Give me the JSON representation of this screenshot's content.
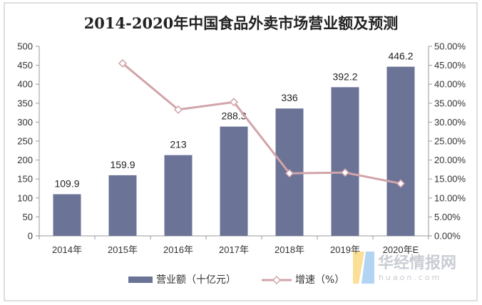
{
  "chart_data": {
    "type": "bar",
    "title": "2014-2020年中国食品外卖市场营业额及预测",
    "categories": [
      "2014年",
      "2015年",
      "2016年",
      "2017年",
      "2018年",
      "2019年",
      "2020年E"
    ],
    "series": [
      {
        "name": "营业额（十亿元）",
        "type": "bar",
        "axis": "left",
        "values": [
          109.9,
          159.9,
          213,
          288.3,
          336,
          392.2,
          446.2
        ],
        "labels": [
          "109.9",
          "159.9",
          "213",
          "288.3",
          "336",
          "392.2",
          "446.2"
        ],
        "color": "#6b7396"
      },
      {
        "name": "增速（%）",
        "type": "line",
        "axis": "right",
        "values": [
          null,
          45.5,
          33.3,
          35.3,
          16.5,
          16.7,
          13.8
        ],
        "color": "#d1a4a9"
      }
    ],
    "y_left": {
      "min": 0,
      "max": 500,
      "step": 50,
      "ticks": [
        "0",
        "50",
        "100",
        "150",
        "200",
        "250",
        "300",
        "350",
        "400",
        "450",
        "500"
      ]
    },
    "y_right": {
      "min": 0,
      "max": 50,
      "step": 5,
      "ticks": [
        "0.00%",
        "5.00%",
        "10.00%",
        "15.00%",
        "20.00%",
        "25.00%",
        "30.00%",
        "35.00%",
        "40.00%",
        "45.00%",
        "50.00%"
      ]
    },
    "grid": false,
    "legend_position": "bottom"
  },
  "watermark": {
    "name_cn": "华经情报网",
    "domain": "huaon.com",
    "colors": [
      "#f5c542",
      "#6fb1e8"
    ]
  },
  "colors": {
    "axis": "#999999",
    "frame": "#bbbbbb"
  }
}
